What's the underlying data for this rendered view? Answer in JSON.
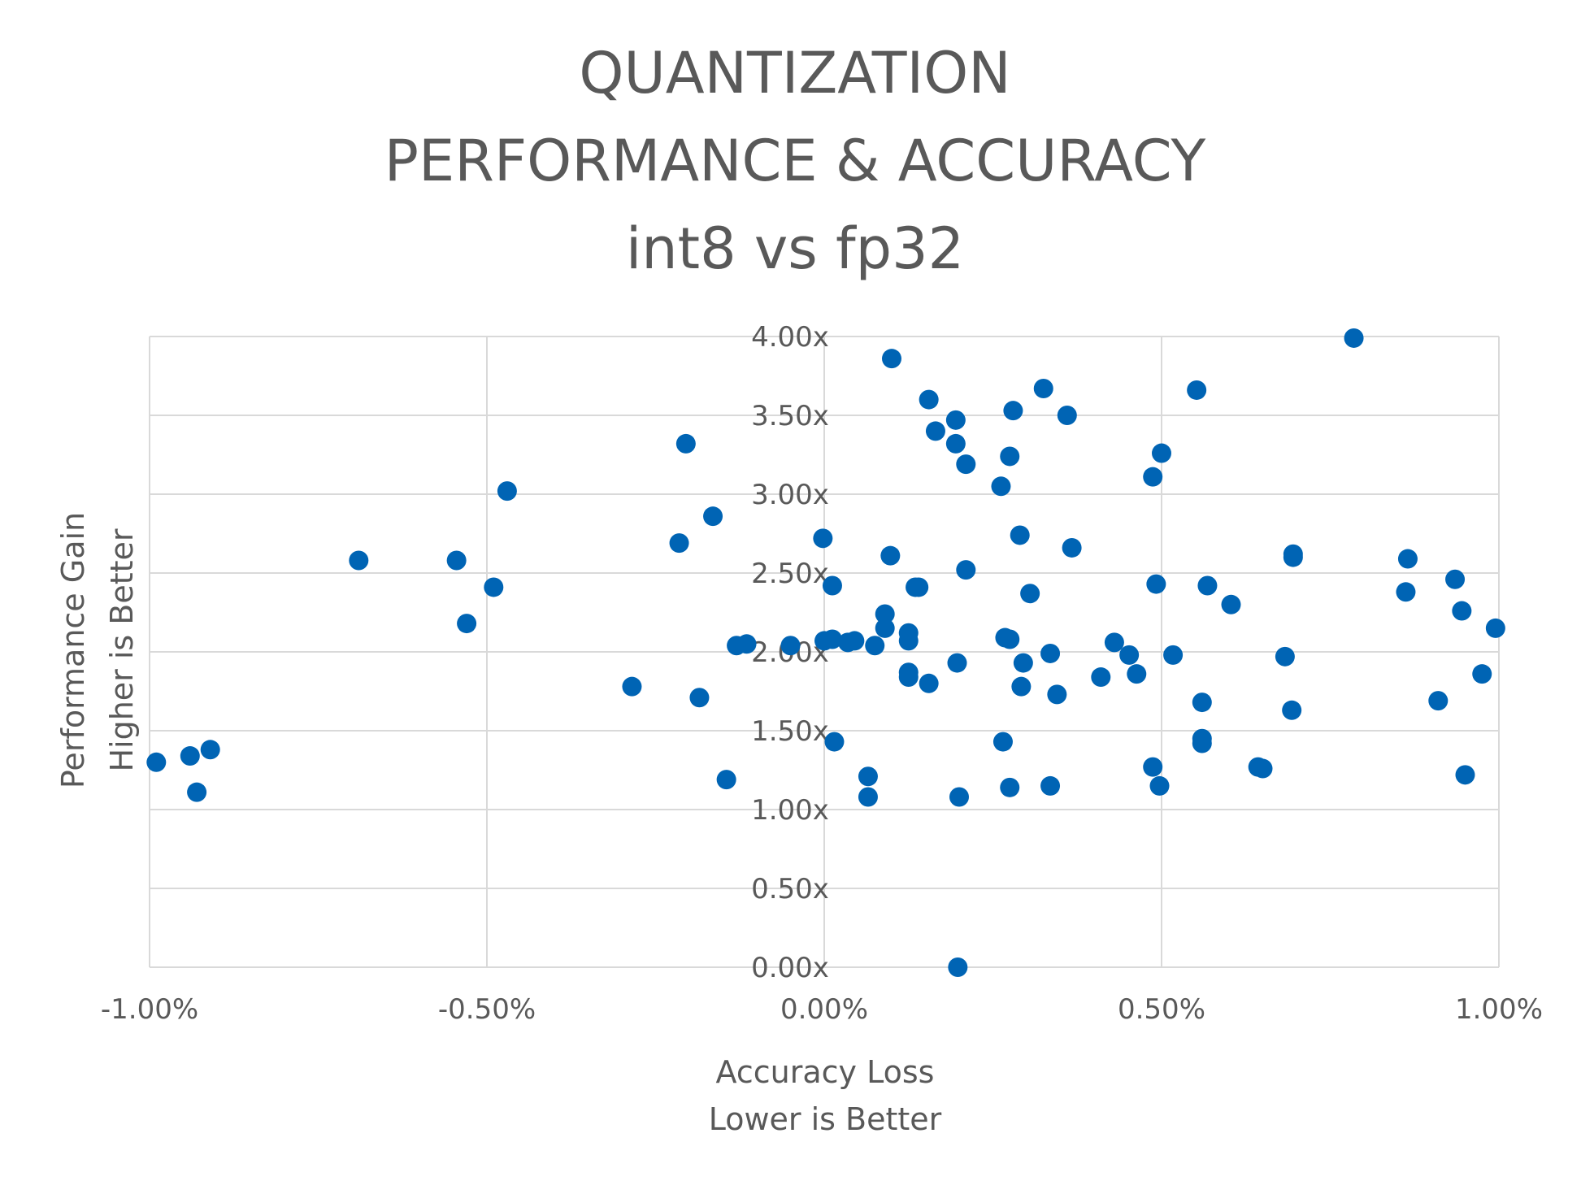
{
  "chart_data": {
    "type": "scatter",
    "title_lines": [
      "QUANTIZATION",
      "PERFORMANCE & ACCURACY",
      "int8 vs fp32"
    ],
    "xlabel_lines": [
      "Accuracy Loss",
      "Lower is Better"
    ],
    "ylabel_lines": [
      "Performance Gain",
      "Higher is Better"
    ],
    "xlim": [
      -1.0,
      1.0
    ],
    "ylim": [
      0.0,
      4.0
    ],
    "x_ticks": [
      -1.0,
      -0.5,
      0.0,
      0.5,
      1.0
    ],
    "y_ticks": [
      0.0,
      0.5,
      1.0,
      1.5,
      2.0,
      2.5,
      3.0,
      3.5,
      4.0
    ],
    "x_tick_labels": [
      "-1.00%",
      "-0.50%",
      "0.00%",
      "0.50%",
      "1.00%"
    ],
    "y_tick_labels": [
      "0.00x",
      "0.50x",
      "1.00x",
      "1.50x",
      "2.00x",
      "2.50x",
      "3.00x",
      "3.50x",
      "4.00x"
    ],
    "grid": true,
    "marker_color": "#0064B4",
    "grid_color": "#D9D9D9",
    "points": [
      [
        -0.99,
        1.3
      ],
      [
        -0.94,
        1.34
      ],
      [
        -0.93,
        1.11
      ],
      [
        -0.91,
        1.38
      ],
      [
        -0.69,
        2.58
      ],
      [
        -0.545,
        2.58
      ],
      [
        -0.53,
        2.18
      ],
      [
        -0.49,
        2.41
      ],
      [
        -0.47,
        3.02
      ],
      [
        -0.285,
        1.78
      ],
      [
        -0.215,
        2.69
      ],
      [
        -0.205,
        3.32
      ],
      [
        -0.185,
        1.71
      ],
      [
        -0.165,
        2.86
      ],
      [
        -0.145,
        1.19
      ],
      [
        -0.13,
        2.04
      ],
      [
        -0.115,
        2.05
      ],
      [
        -0.05,
        2.04
      ],
      [
        -0.002,
        2.72
      ],
      [
        0.0,
        2.07
      ],
      [
        0.012,
        2.08
      ],
      [
        0.012,
        2.42
      ],
      [
        0.015,
        1.43
      ],
      [
        0.035,
        2.06
      ],
      [
        0.045,
        2.07
      ],
      [
        0.065,
        1.21
      ],
      [
        0.065,
        1.08
      ],
      [
        0.075,
        2.04
      ],
      [
        0.09,
        2.24
      ],
      [
        0.09,
        2.15
      ],
      [
        0.098,
        2.61
      ],
      [
        0.1,
        3.86
      ],
      [
        0.125,
        2.12
      ],
      [
        0.125,
        2.07
      ],
      [
        0.125,
        1.87
      ],
      [
        0.125,
        1.84
      ],
      [
        0.135,
        2.41
      ],
      [
        0.14,
        2.41
      ],
      [
        0.155,
        1.8
      ],
      [
        0.155,
        3.6
      ],
      [
        0.165,
        3.4
      ],
      [
        0.195,
        3.47
      ],
      [
        0.195,
        3.32
      ],
      [
        0.197,
        1.93
      ],
      [
        0.2,
        1.08
      ],
      [
        0.198,
        0.0
      ],
      [
        0.21,
        3.19
      ],
      [
        0.21,
        2.52
      ],
      [
        0.262,
        3.05
      ],
      [
        0.265,
        1.43
      ],
      [
        0.268,
        2.09
      ],
      [
        0.275,
        2.08
      ],
      [
        0.275,
        3.24
      ],
      [
        0.275,
        1.14
      ],
      [
        0.28,
        3.53
      ],
      [
        0.29,
        2.74
      ],
      [
        0.292,
        1.78
      ],
      [
        0.295,
        1.93
      ],
      [
        0.305,
        2.37
      ],
      [
        0.325,
        3.67
      ],
      [
        0.335,
        1.99
      ],
      [
        0.335,
        1.15
      ],
      [
        0.345,
        1.73
      ],
      [
        0.36,
        3.5
      ],
      [
        0.367,
        2.66
      ],
      [
        0.41,
        1.84
      ],
      [
        0.43,
        2.06
      ],
      [
        0.452,
        1.98
      ],
      [
        0.463,
        1.86
      ],
      [
        0.487,
        3.11
      ],
      [
        0.487,
        1.27
      ],
      [
        0.492,
        2.43
      ],
      [
        0.497,
        1.15
      ],
      [
        0.5,
        3.26
      ],
      [
        0.517,
        1.98
      ],
      [
        0.552,
        3.66
      ],
      [
        0.56,
        1.68
      ],
      [
        0.56,
        1.45
      ],
      [
        0.56,
        1.42
      ],
      [
        0.568,
        2.42
      ],
      [
        0.603,
        2.3
      ],
      [
        0.643,
        1.27
      ],
      [
        0.65,
        1.26
      ],
      [
        0.683,
        1.97
      ],
      [
        0.693,
        1.63
      ],
      [
        0.695,
        2.62
      ],
      [
        0.695,
        2.6
      ],
      [
        0.785,
        3.99
      ],
      [
        0.862,
        2.38
      ],
      [
        0.865,
        2.59
      ],
      [
        0.91,
        1.69
      ],
      [
        0.935,
        2.46
      ],
      [
        0.945,
        2.26
      ],
      [
        0.95,
        1.22
      ],
      [
        0.975,
        1.86
      ],
      [
        0.995,
        2.15
      ]
    ]
  }
}
